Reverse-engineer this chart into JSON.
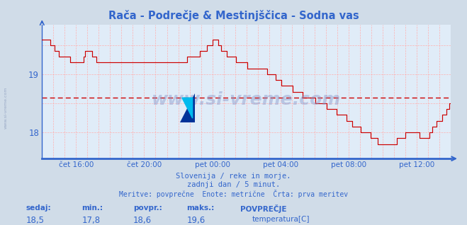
{
  "title": "Rača - Podrečje & Mestinjščica - Sodna vas",
  "bg_color": "#d0dce8",
  "plot_bg_color": "#e0ecf8",
  "line_color": "#cc0000",
  "avg_line_color": "#cc0000",
  "grid_color": "#ffb0b0",
  "axis_color": "#3366cc",
  "text_color": "#3366cc",
  "ylim": [
    17.55,
    19.85
  ],
  "ytick_vals": [
    18.0,
    19.0
  ],
  "xtick_positions": [
    2,
    6,
    10,
    14,
    18,
    22
  ],
  "xtick_labels": [
    "čet 16:00",
    "čet 20:00",
    "pet 00:00",
    "pet 04:00",
    "pet 08:00",
    "pet 12:00"
  ],
  "avg_value": 18.6,
  "sedaj": "18,5",
  "min_val": "17,8",
  "povpr": "18,6",
  "maks": "19,6",
  "footer1": "Slovenija / reke in morje.",
  "footer2": "zadnji dan / 5 minut.",
  "footer3": "Meritve: povprečne  Enote: metrične  Črta: prva meritev",
  "legend_label": "temperatura[C]",
  "watermark": "www.si-vreme.com",
  "sidebar_text": "www.si-vreme.com"
}
